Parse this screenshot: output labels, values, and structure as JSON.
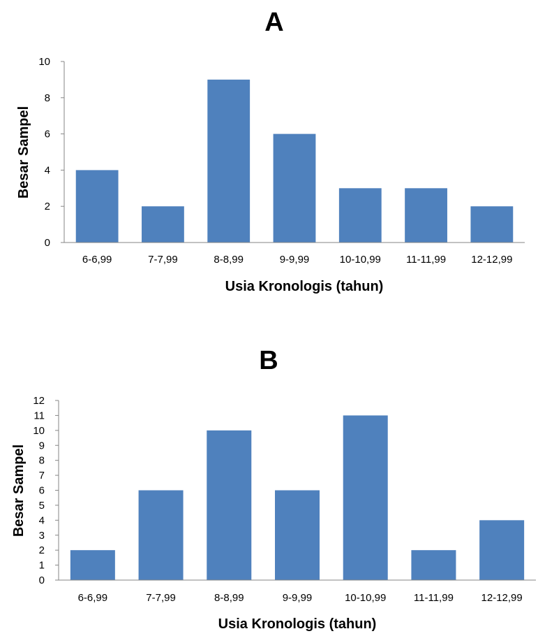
{
  "chart_data": [
    {
      "type": "bar",
      "title": "A",
      "xlabel": "Usia Kronologis (tahun)",
      "ylabel": "Besar Sampel",
      "categories": [
        "6-6,99",
        "7-7,99",
        "8-8,99",
        "9-9,99",
        "10-10,99",
        "11-11,99",
        "12-12,99"
      ],
      "values": [
        4,
        2,
        9,
        6,
        3,
        3,
        2
      ],
      "ylim": [
        0,
        10
      ],
      "yticks": [
        "0",
        "2",
        "4",
        "6",
        "8",
        "10"
      ],
      "grid": false,
      "bar_color": "#4f81bd"
    },
    {
      "type": "bar",
      "title": "B",
      "xlabel": "Usia Kronologis (tahun)",
      "ylabel": "Besar Sampel",
      "categories": [
        "6-6,99",
        "7-7,99",
        "8-8,99",
        "9-9,99",
        "10-10,99",
        "11-11,99",
        "12-12,99"
      ],
      "values": [
        2,
        6,
        10,
        6,
        11,
        2,
        4
      ],
      "ylim": [
        0,
        12
      ],
      "yticks": [
        "0",
        "1",
        "2",
        "3",
        "4",
        "5",
        "6",
        "7",
        "8",
        "9",
        "10",
        "11",
        "12"
      ],
      "grid": false,
      "bar_color": "#4f81bd"
    }
  ]
}
